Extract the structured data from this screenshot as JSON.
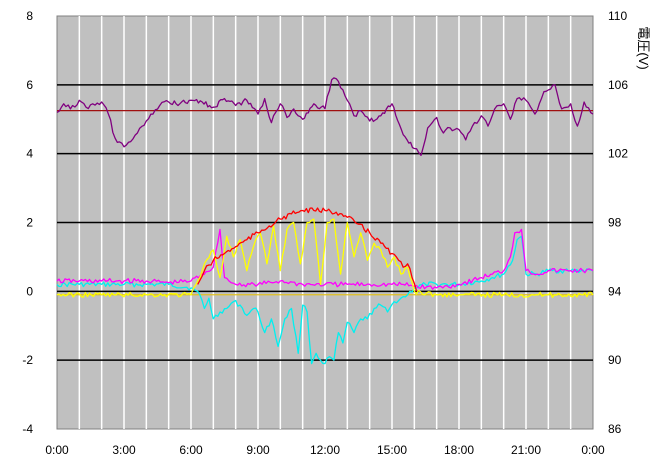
{
  "chart_data": {
    "type": "line",
    "title": "",
    "xlabel": "",
    "ylabel": "",
    "y2label": "電圧(V)",
    "xlim": [
      0,
      24
    ],
    "ylim": [
      -4,
      8
    ],
    "y2lim": [
      86,
      110
    ],
    "grid": true,
    "background": "#c0c0c0",
    "x_ticks": [
      {
        "value": 0,
        "label": "0:00"
      },
      {
        "value": 3,
        "label": "3:00"
      },
      {
        "value": 6,
        "label": "6:00"
      },
      {
        "value": 9,
        "label": "9:00"
      },
      {
        "value": 12,
        "label": "12:00"
      },
      {
        "value": 15,
        "label": "15:00"
      },
      {
        "value": 18,
        "label": "18:00"
      },
      {
        "value": 21,
        "label": "21:00"
      },
      {
        "value": 24,
        "label": "0:00"
      }
    ],
    "y_ticks": [
      {
        "value": -4,
        "label": "-4"
      },
      {
        "value": -2,
        "label": "-2"
      },
      {
        "value": 0,
        "label": "0"
      },
      {
        "value": 2,
        "label": "2"
      },
      {
        "value": 4,
        "label": "4"
      },
      {
        "value": 6,
        "label": "6"
      },
      {
        "value": 8,
        "label": "8"
      }
    ],
    "y2_ticks": [
      {
        "value": 86,
        "label": "86"
      },
      {
        "value": 90,
        "label": "90"
      },
      {
        "value": 94,
        "label": "94"
      },
      {
        "value": 98,
        "label": "98"
      },
      {
        "value": 102,
        "label": "102"
      },
      {
        "value": 106,
        "label": "106"
      },
      {
        "value": 110,
        "label": "110"
      }
    ],
    "hlines": [
      {
        "axis": "y2",
        "value": 104.5,
        "color": "#a01010"
      },
      {
        "axis": "y",
        "value": -0.1,
        "color": "#e0c020"
      }
    ],
    "series": [
      {
        "axis": "y",
        "color": "#00f0f0",
        "x": [
          0,
          1,
          2,
          3,
          4,
          5,
          6,
          6.4,
          6.6,
          6.8,
          7,
          7.3,
          7.6,
          7.9,
          8.2,
          8.5,
          8.8,
          9,
          9.3,
          9.6,
          9.9,
          10.2,
          10.5,
          10.8,
          11,
          11.2,
          11.4,
          11.6,
          11.8,
          12,
          12.2,
          12.4,
          12.6,
          12.8,
          13,
          13.3,
          13.6,
          13.9,
          14.2,
          14.5,
          14.8,
          15.1,
          15.4,
          15.7,
          16,
          16.5,
          17,
          18,
          19,
          19.5,
          20,
          20.4,
          20.6,
          20.8,
          21,
          21.5,
          22,
          23,
          24
        ],
        "y": [
          0.2,
          0.2,
          0.2,
          0.2,
          0.2,
          0.2,
          0.1,
          -0.1,
          -0.5,
          -0.2,
          -0.8,
          -0.6,
          -0.5,
          -0.3,
          -0.4,
          -0.7,
          -0.5,
          -0.6,
          -1.2,
          -0.8,
          -1.6,
          -0.8,
          -0.5,
          -1.8,
          -0.4,
          -0.6,
          -2.1,
          -1.8,
          -2.0,
          -2.1,
          -1.9,
          -2.0,
          -1.2,
          -1.5,
          -0.9,
          -1.2,
          -0.8,
          -0.8,
          -0.5,
          -0.4,
          -0.6,
          -0.3,
          -0.2,
          -0.1,
          0.1,
          0.2,
          0.2,
          0.2,
          0.3,
          0.4,
          0.5,
          0.9,
          1.5,
          1.6,
          0.5,
          0.5,
          0.6,
          0.6,
          0.6
        ]
      },
      {
        "axis": "y",
        "color": "#ff00ff",
        "x": [
          0,
          1,
          2,
          3,
          4,
          5,
          6,
          6.5,
          7,
          7.3,
          7.5,
          7.7,
          8,
          9,
          10,
          11,
          12,
          13,
          14,
          15,
          15.5,
          16,
          17,
          18,
          19,
          19.5,
          20,
          20.3,
          20.5,
          20.8,
          21,
          21.5,
          22,
          23,
          24
        ],
        "y": [
          0.3,
          0.3,
          0.3,
          0.3,
          0.3,
          0.25,
          0.3,
          0.5,
          0.7,
          1.8,
          0.4,
          0.3,
          0.2,
          0.2,
          0.3,
          0.2,
          0.2,
          0.2,
          0.2,
          0.2,
          0.2,
          0.15,
          0.1,
          0.2,
          0.4,
          0.5,
          0.6,
          1.0,
          1.7,
          1.8,
          0.6,
          0.5,
          0.6,
          0.6,
          0.6
        ]
      },
      {
        "axis": "y",
        "color": "#ffff00",
        "x": [
          0,
          2,
          4,
          6,
          6.3,
          6.6,
          7,
          7.3,
          7.6,
          7.9,
          8.2,
          8.5,
          8.8,
          9.1,
          9.4,
          9.7,
          10,
          10.3,
          10.6,
          10.9,
          11.2,
          11.5,
          11.8,
          12.1,
          12.4,
          12.7,
          13,
          13.3,
          13.6,
          13.9,
          14.2,
          14.5,
          14.8,
          15.1,
          15.4,
          15.7,
          16,
          17,
          18,
          20,
          22,
          24
        ],
        "y": [
          -0.1,
          -0.1,
          -0.1,
          -0.1,
          0.3,
          0.8,
          1.2,
          0.4,
          1.6,
          1.0,
          1.5,
          0.6,
          1.3,
          1.7,
          0.8,
          1.9,
          0.6,
          1.8,
          2.0,
          0.8,
          2.0,
          2.1,
          0.2,
          2.0,
          2.1,
          0.5,
          2.0,
          1.0,
          1.7,
          0.9,
          1.4,
          1.2,
          0.7,
          1.0,
          0.5,
          0.7,
          0.0,
          -0.1,
          -0.1,
          -0.1,
          -0.1,
          -0.1
        ]
      },
      {
        "axis": "y",
        "color": "#ff0000",
        "x": [
          6.3,
          6.6,
          7,
          7.5,
          8,
          8.5,
          9,
          9.5,
          10,
          10.5,
          11,
          11.5,
          12,
          12.5,
          13,
          13.5,
          14,
          14.5,
          15,
          15.3,
          15.5,
          15.7,
          15.9,
          16.1
        ],
        "y": [
          0.2,
          0.6,
          0.9,
          1.1,
          1.3,
          1.5,
          1.7,
          1.9,
          2.1,
          2.25,
          2.35,
          2.35,
          2.35,
          2.3,
          2.15,
          1.95,
          1.7,
          1.4,
          1.1,
          0.9,
          0.7,
          0.8,
          0.4,
          0.0
        ]
      },
      {
        "axis": "y2",
        "color": "#800080",
        "x": [
          0,
          0.3,
          0.6,
          1,
          1.3,
          1.6,
          2,
          2.3,
          2.6,
          3,
          3.3,
          3.6,
          4,
          4.3,
          4.6,
          5,
          5.5,
          6,
          6.5,
          7,
          7.5,
          8,
          8.5,
          9,
          9.3,
          9.6,
          10,
          10.3,
          10.6,
          11,
          11.5,
          12,
          12.3,
          12.6,
          13,
          13.3,
          13.6,
          14,
          14.5,
          15,
          15.5,
          16,
          16.3,
          16.6,
          17,
          17.3,
          17.6,
          18,
          18.3,
          18.6,
          19,
          19.3,
          19.6,
          20,
          20.3,
          20.6,
          21,
          21.4,
          21.8,
          22,
          22.3,
          22.6,
          23,
          23.3,
          23.6,
          24
        ],
        "y": [
          104.4,
          104.9,
          104.6,
          105.1,
          104.7,
          104.9,
          105.0,
          104.3,
          102.9,
          102.4,
          102.7,
          103.2,
          103.9,
          104.3,
          104.8,
          105.0,
          104.9,
          105.1,
          105.0,
          104.7,
          105.2,
          104.8,
          105.1,
          104.3,
          105.2,
          103.8,
          104.9,
          104.1,
          104.6,
          104.0,
          104.9,
          104.6,
          106.3,
          106.2,
          105.1,
          104.2,
          104.5,
          103.9,
          104.2,
          104.9,
          103.1,
          102.3,
          101.9,
          103.5,
          104.1,
          103.2,
          103.5,
          103.4,
          102.8,
          103.6,
          104.2,
          103.6,
          104.6,
          104.9,
          104.0,
          105.2,
          105.1,
          104.3,
          105.6,
          105.7,
          106.0,
          104.6,
          104.9,
          103.6,
          105.0,
          104.3
        ]
      }
    ]
  }
}
